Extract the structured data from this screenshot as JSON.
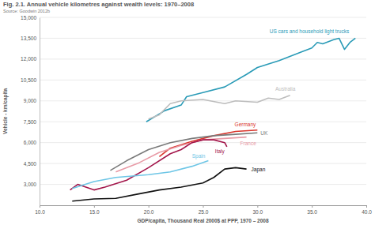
{
  "chart_data": {
    "type": "line",
    "title": "Fig. 2.1. Annual vehicle kilometres against wealth levels: 1970–2008",
    "subtitle": "Source: Goodwin 2012b",
    "x_label": "GDP/capita, Thousand Real 2000$ at PPP, 1970 – 2008",
    "y_label": "Vehicle - km/capita",
    "xlim": [
      10,
      40
    ],
    "xticks": [
      {
        "value": 10,
        "label": "10.0"
      },
      {
        "value": 15,
        "label": "15.0"
      },
      {
        "value": 20,
        "label": "20.0"
      },
      {
        "value": 25,
        "label": "25.0"
      },
      {
        "value": 30,
        "label": "30.0"
      },
      {
        "value": 35,
        "label": "35.0"
      },
      {
        "value": 40,
        "label": "40.0"
      }
    ],
    "ylim": [
      1500,
      15000
    ],
    "yticks": [
      {
        "value": 3000,
        "label": "3,000"
      },
      {
        "value": 4500,
        "label": "4,500"
      },
      {
        "value": 6000,
        "label": "6,000"
      },
      {
        "value": 7500,
        "label": "7,500"
      },
      {
        "value": 9000,
        "label": "9,000"
      },
      {
        "value": 10500,
        "label": "10,500"
      },
      {
        "value": 12000,
        "label": "12,000"
      },
      {
        "value": 13500,
        "label": "13,500"
      },
      {
        "value": 15000,
        "label": "15,000"
      }
    ],
    "grid": true,
    "series": [
      {
        "name": "US cars and household light trucks",
        "color": "#2a9bb7",
        "x": [
          19.8,
          21.5,
          23,
          23.5,
          25,
          27,
          29,
          30,
          32,
          34,
          35,
          35.5,
          36,
          37,
          37.5,
          38,
          38.5,
          39
        ],
        "values": [
          7500,
          8300,
          8700,
          9300,
          9600,
          10000,
          10900,
          11400,
          11900,
          12500,
          12800,
          13200,
          13100,
          13400,
          13500,
          12700,
          13200,
          13500
        ]
      },
      {
        "name": "Australia",
        "color": "#bdbdbd",
        "x": [
          20,
          21,
          22,
          23,
          25,
          27,
          28,
          30,
          31,
          32,
          33
        ],
        "values": [
          7700,
          8000,
          8800,
          9000,
          9100,
          8800,
          9000,
          8900,
          9200,
          9100,
          9400
        ]
      },
      {
        "name": "Germany",
        "color": "#d9342b",
        "x": [
          21,
          22,
          24,
          26,
          28,
          30
        ],
        "values": [
          5000,
          5600,
          6100,
          6500,
          6800,
          6900
        ]
      },
      {
        "name": "UK",
        "color": "#7a7a7a",
        "x": [
          16.5,
          18,
          20,
          22,
          24,
          26,
          28,
          30
        ],
        "values": [
          4000,
          4700,
          5500,
          6000,
          6300,
          6500,
          6600,
          6700
        ]
      },
      {
        "name": "France",
        "color": "#e89aa6",
        "x": [
          17,
          19,
          21,
          23,
          25,
          27,
          29
        ],
        "values": [
          3900,
          4500,
          5300,
          5800,
          6200,
          6300,
          6400
        ]
      },
      {
        "name": "Italy",
        "color": "#a3164b",
        "x": [
          12.8,
          13.5,
          15,
          16,
          18,
          20,
          22,
          23,
          24,
          25,
          26,
          27,
          27.2
        ],
        "values": [
          2600,
          3000,
          2600,
          2800,
          3300,
          4200,
          5200,
          5500,
          6000,
          6200,
          6200,
          6000,
          5700
        ]
      },
      {
        "name": "Spain",
        "color": "#6ec6e6",
        "x": [
          13,
          15,
          17,
          20,
          22,
          24,
          25.5
        ],
        "values": [
          2700,
          3200,
          3500,
          3700,
          3900,
          4300,
          4700
        ]
      },
      {
        "name": "Japan",
        "color": "#111111",
        "x": [
          13,
          15,
          17,
          19,
          21,
          23,
          25,
          26,
          27,
          28,
          29
        ],
        "values": [
          1800,
          1950,
          2000,
          2300,
          2600,
          2800,
          3100,
          3500,
          4100,
          4200,
          4100
        ]
      }
    ]
  }
}
